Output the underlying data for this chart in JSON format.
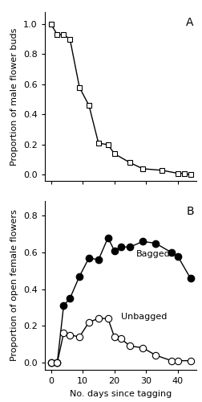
{
  "panel_A": {
    "label": "A",
    "x": [
      0,
      2,
      4,
      6,
      9,
      12,
      15,
      18,
      20,
      25,
      29,
      35,
      40,
      42,
      44
    ],
    "y": [
      1.0,
      0.93,
      0.93,
      0.9,
      0.58,
      0.46,
      0.21,
      0.2,
      0.14,
      0.08,
      0.04,
      0.03,
      0.01,
      0.01,
      0.0
    ],
    "ylabel": "Proportion of male flower buds",
    "ylim": [
      -0.04,
      1.08
    ],
    "yticks": [
      0.0,
      0.2,
      0.4,
      0.6,
      0.8,
      1.0
    ],
    "xlim": [
      -2,
      46
    ],
    "xticks": [
      0,
      10,
      20,
      30,
      40
    ],
    "marker": "s",
    "markersize": 4,
    "color": "#000000",
    "markerfacecolor": "white",
    "linewidth": 1.0
  },
  "panel_B": {
    "label": "B",
    "bagged_x": [
      0,
      2,
      4,
      6,
      9,
      12,
      15,
      18,
      20,
      22,
      25,
      29,
      33,
      38,
      40,
      44
    ],
    "bagged_y": [
      0.0,
      0.0,
      0.31,
      0.35,
      0.47,
      0.57,
      0.56,
      0.68,
      0.61,
      0.63,
      0.63,
      0.66,
      0.65,
      0.6,
      0.58,
      0.46
    ],
    "unbagged_x": [
      0,
      2,
      4,
      6,
      9,
      12,
      15,
      18,
      20,
      22,
      25,
      29,
      33,
      38,
      40,
      44
    ],
    "unbagged_y": [
      0.0,
      0.0,
      0.16,
      0.15,
      0.14,
      0.22,
      0.24,
      0.24,
      0.14,
      0.13,
      0.09,
      0.08,
      0.04,
      0.01,
      0.01,
      0.01
    ],
    "ylabel": "Proportion of open female flowers",
    "xlabel": "No. days since tagging",
    "ylim": [
      -0.04,
      0.88
    ],
    "yticks": [
      0.0,
      0.2,
      0.4,
      0.6,
      0.8
    ],
    "xlim": [
      -2,
      46
    ],
    "xticks": [
      0,
      10,
      20,
      30,
      40
    ],
    "bagged_label": "Bagged",
    "unbagged_label": "Unbagged",
    "markersize": 6,
    "color": "#000000",
    "linewidth": 1.0
  },
  "background_color": "#ffffff",
  "tick_labelsize": 8,
  "axis_labelsize": 8,
  "panel_labelsize": 10
}
